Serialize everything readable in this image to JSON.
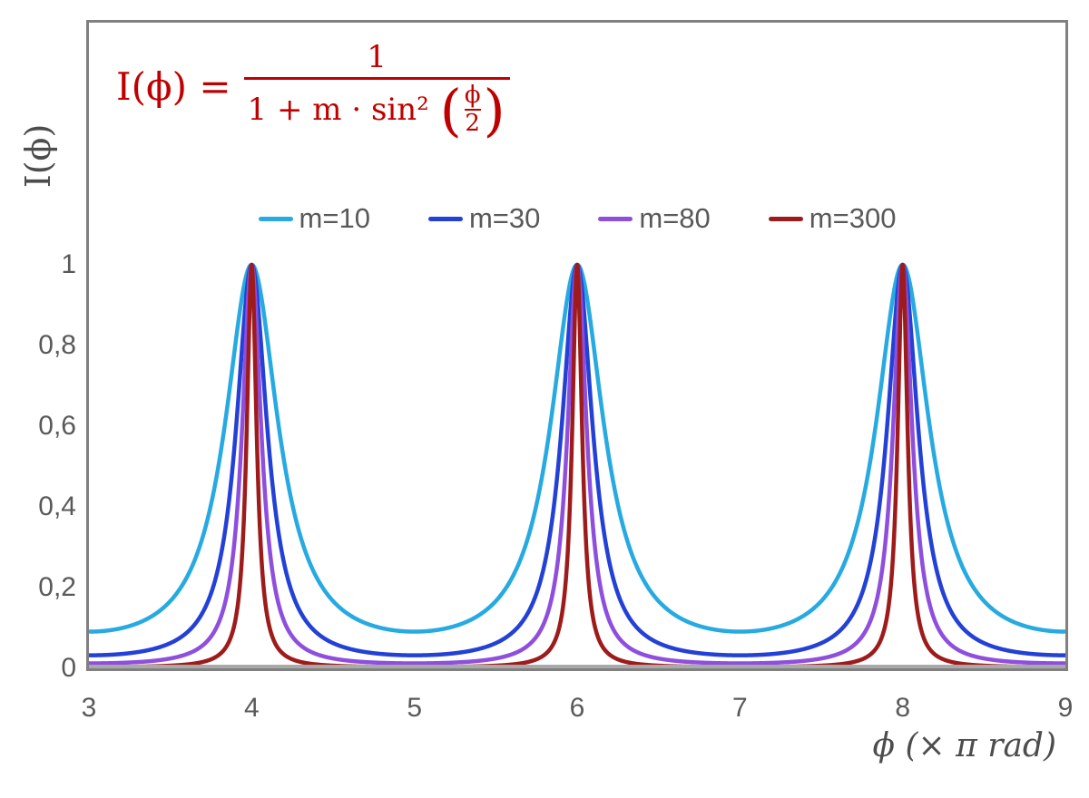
{
  "formula": {
    "lhs": "I(ϕ) =",
    "numerator": "1",
    "denominator_prefix": "1 + m · sin² ",
    "open_paren": "(",
    "inner_numerator": "ϕ",
    "inner_denominator": "2",
    "close_paren": ")",
    "color": "#C00000"
  },
  "chart_data": {
    "type": "line",
    "title": "",
    "xlabel": "ϕ  (× π rad)",
    "ylabel": "I(ϕ)",
    "formula": "I(ϕ) = 1 / (1 + m·sin²(ϕ/2)) with ϕ expressed in units of π rad",
    "xlim": [
      3,
      9
    ],
    "ylim": [
      0,
      1.6
    ],
    "x_tick_values": [
      3,
      4,
      5,
      6,
      7,
      8,
      9
    ],
    "x_tick_labels": [
      "3",
      "4",
      "5",
      "6",
      "7",
      "8",
      "9"
    ],
    "y_tick_values": [
      0,
      0.2,
      0.4,
      0.6,
      0.8,
      1
    ],
    "y_tick_labels": [
      "0",
      "0,2",
      "0,4",
      "0,6",
      "0,8",
      "1"
    ],
    "grid": false,
    "legend_position": "top-center-horizontal",
    "sample_step": 0.0025,
    "line_width": 4.5,
    "series": [
      {
        "name": "m=10",
        "m": 10,
        "color": "#27AAE1",
        "peaks_x": [
          4,
          6,
          8
        ],
        "peak_y": 1,
        "valley_y": 0.091
      },
      {
        "name": "m=30",
        "m": 30,
        "color": "#2341D6",
        "peaks_x": [
          4,
          6,
          8
        ],
        "peak_y": 1,
        "valley_y": 0.032
      },
      {
        "name": "m=80",
        "m": 80,
        "color": "#8F4FDE",
        "peaks_x": [
          4,
          6,
          8
        ],
        "peak_y": 1,
        "valley_y": 0.012
      },
      {
        "name": "m=300",
        "m": 300,
        "color": "#9E1B1B",
        "peaks_x": [
          4,
          6,
          8
        ],
        "peak_y": 1,
        "valley_y": 0.003
      }
    ],
    "plot_border_color": "#808080",
    "axis_line_color": "#A9A9A9",
    "tick_label_color": "#595959",
    "title_color": "#4D4D4D"
  }
}
